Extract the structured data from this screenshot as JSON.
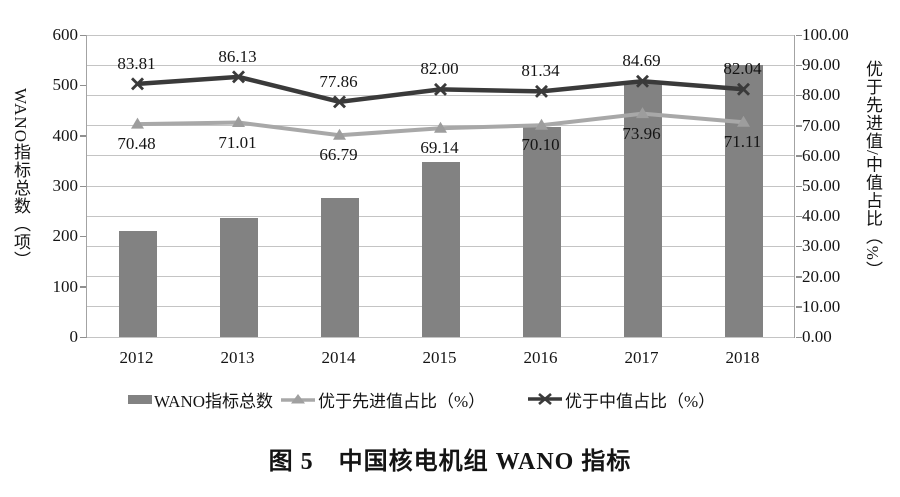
{
  "figure": {
    "caption": "图 5　中国核电机组 WANO 指标"
  },
  "colors": {
    "bar": "#828282",
    "line_advanced": "#a8a8a8",
    "line_median": "#3a3a3a",
    "gridline": "#c4c4c4",
    "axis": "#8f8f8f",
    "text": "#141414"
  },
  "chart_data": {
    "type": "bar",
    "subtype": "combo-bar-line",
    "title": "图 5　中国核电机组 WANO 指标",
    "categories": [
      "2012",
      "2013",
      "2014",
      "2015",
      "2016",
      "2017",
      "2018"
    ],
    "series": [
      {
        "name": "WANO指标总数",
        "type": "bar",
        "axis": "left",
        "values": [
          210,
          236,
          277,
          348,
          418,
          505,
          540
        ],
        "labels_shown": false
      },
      {
        "name": "优于先进值占比（%）",
        "type": "line",
        "marker": "triangle",
        "axis": "right",
        "values": [
          70.48,
          71.01,
          66.79,
          69.14,
          70.1,
          73.96,
          71.11
        ],
        "labels": [
          "70.48",
          "71.01",
          "66.79",
          "69.14",
          "70.10",
          "73.96",
          "71.11"
        ],
        "label_position": "below"
      },
      {
        "name": "优于中值占比（%）",
        "type": "line",
        "marker": "x",
        "axis": "right",
        "values": [
          83.81,
          86.13,
          77.86,
          82.0,
          81.34,
          84.69,
          82.04
        ],
        "labels": [
          "83.81",
          "86.13",
          "77.86",
          "82.00",
          "81.34",
          "84.69",
          "82.04"
        ],
        "label_position": "above"
      }
    ],
    "left_axis": {
      "title": "WANO指标总数（项）",
      "min": 0,
      "max": 600,
      "tick_step": 100,
      "tick_labels": [
        "600",
        "500",
        "400",
        "300",
        "200",
        "100",
        "0"
      ]
    },
    "right_axis": {
      "title": "优于先进值/中值占比（%）",
      "min": 0,
      "max": 100,
      "tick_step": 10,
      "tick_labels": [
        "100.00",
        "90.00",
        "80.00",
        "70.00",
        "60.00",
        "50.00",
        "40.00",
        "30.00",
        "20.00",
        "10.00",
        "0.00"
      ]
    },
    "grid": {
      "horizontal_divisions": 10,
      "vertical": false
    },
    "legend_position": "bottom"
  },
  "legend": {
    "items": [
      {
        "label": "WANO指标总数",
        "marker": "bar-swatch"
      },
      {
        "label": "优于先进值占比（%）",
        "marker": "triangle-line"
      },
      {
        "label": "优于中值占比（%）",
        "marker": "x-line"
      }
    ]
  }
}
